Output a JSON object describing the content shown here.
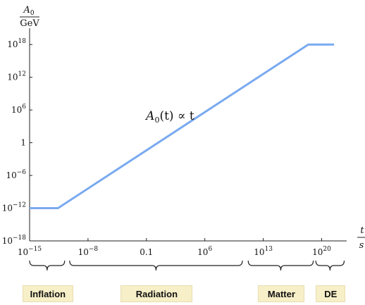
{
  "chart_data": {
    "type": "line",
    "title": "",
    "ylabel": {
      "num": "A",
      "num_sub": "0",
      "den": "GeV"
    },
    "xlabel": {
      "num": "t",
      "den": "s"
    },
    "scale": {
      "x": "log",
      "y": "log"
    },
    "xlim_exp": [
      -15,
      23
    ],
    "ylim_exp": [
      -18,
      21
    ],
    "x_ticks": [
      {
        "exp": -15,
        "label_base": "10",
        "label_sup": "−15"
      },
      {
        "exp": -8,
        "label_base": "10",
        "label_sup": "−8"
      },
      {
        "exp": -1,
        "label_base": "0.1",
        "label_sup": ""
      },
      {
        "exp": 6,
        "label_base": "10",
        "label_sup": "6"
      },
      {
        "exp": 13,
        "label_base": "10",
        "label_sup": "13"
      },
      {
        "exp": 20,
        "label_base": "10",
        "label_sup": "20"
      }
    ],
    "y_ticks": [
      {
        "exp": 18,
        "label_base": "10",
        "label_sup": "18"
      },
      {
        "exp": 12,
        "label_base": "10",
        "label_sup": "12"
      },
      {
        "exp": 6,
        "label_base": "10",
        "label_sup": "6"
      },
      {
        "exp": 0,
        "label_base": "1",
        "label_sup": ""
      },
      {
        "exp": -6,
        "label_base": "10",
        "label_sup": "−6"
      },
      {
        "exp": -12,
        "label_base": "10",
        "label_sup": "−12"
      },
      {
        "exp": -18,
        "label_base": "10",
        "label_sup": "−18"
      }
    ],
    "series": [
      {
        "color": "#7aaaf0",
        "points": [
          {
            "x_exp": -15,
            "y_exp": -12
          },
          {
            "x_exp": -11.6,
            "y_exp": -12
          },
          {
            "x_exp": 18.4,
            "y_exp": 18
          },
          {
            "x_exp": 21.5,
            "y_exp": 18
          }
        ]
      }
    ],
    "annotation": {
      "text_A": "A",
      "text_sub": "0",
      "text_rest": "(t) ∝ t",
      "at": {
        "x_exp": 3,
        "y_exp": 5
      }
    },
    "eras": [
      {
        "label": "Inflation",
        "from_exp": -15,
        "to_exp": -10.8
      },
      {
        "label": "Radiation",
        "from_exp": -10.2,
        "to_exp": 10.5
      },
      {
        "label": "Matter",
        "from_exp": 11.2,
        "to_exp": 19
      },
      {
        "label": "DE",
        "from_exp": 19.3,
        "to_exp": 22.7
      }
    ],
    "grid": false,
    "legend": "none"
  }
}
